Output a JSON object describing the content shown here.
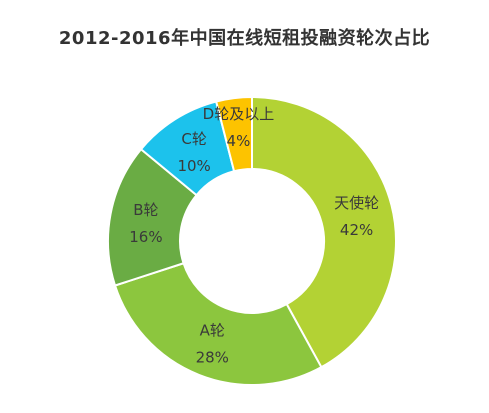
{
  "chart_data": {
    "type": "pie",
    "donut": true,
    "title": "2012-2016年中国在线短租投融资轮次占比",
    "unit": "%",
    "slices": [
      {
        "label": "天使轮",
        "value": 42,
        "color": "#b3d234"
      },
      {
        "label": "A轮",
        "value": 28,
        "color": "#8cc63e"
      },
      {
        "label": "B轮",
        "value": 16,
        "color": "#6aac44"
      },
      {
        "label": "C轮",
        "value": 10,
        "color": "#1cc2ec"
      },
      {
        "label": "D轮及以上",
        "value": 4,
        "color": "#fdc300"
      }
    ]
  }
}
